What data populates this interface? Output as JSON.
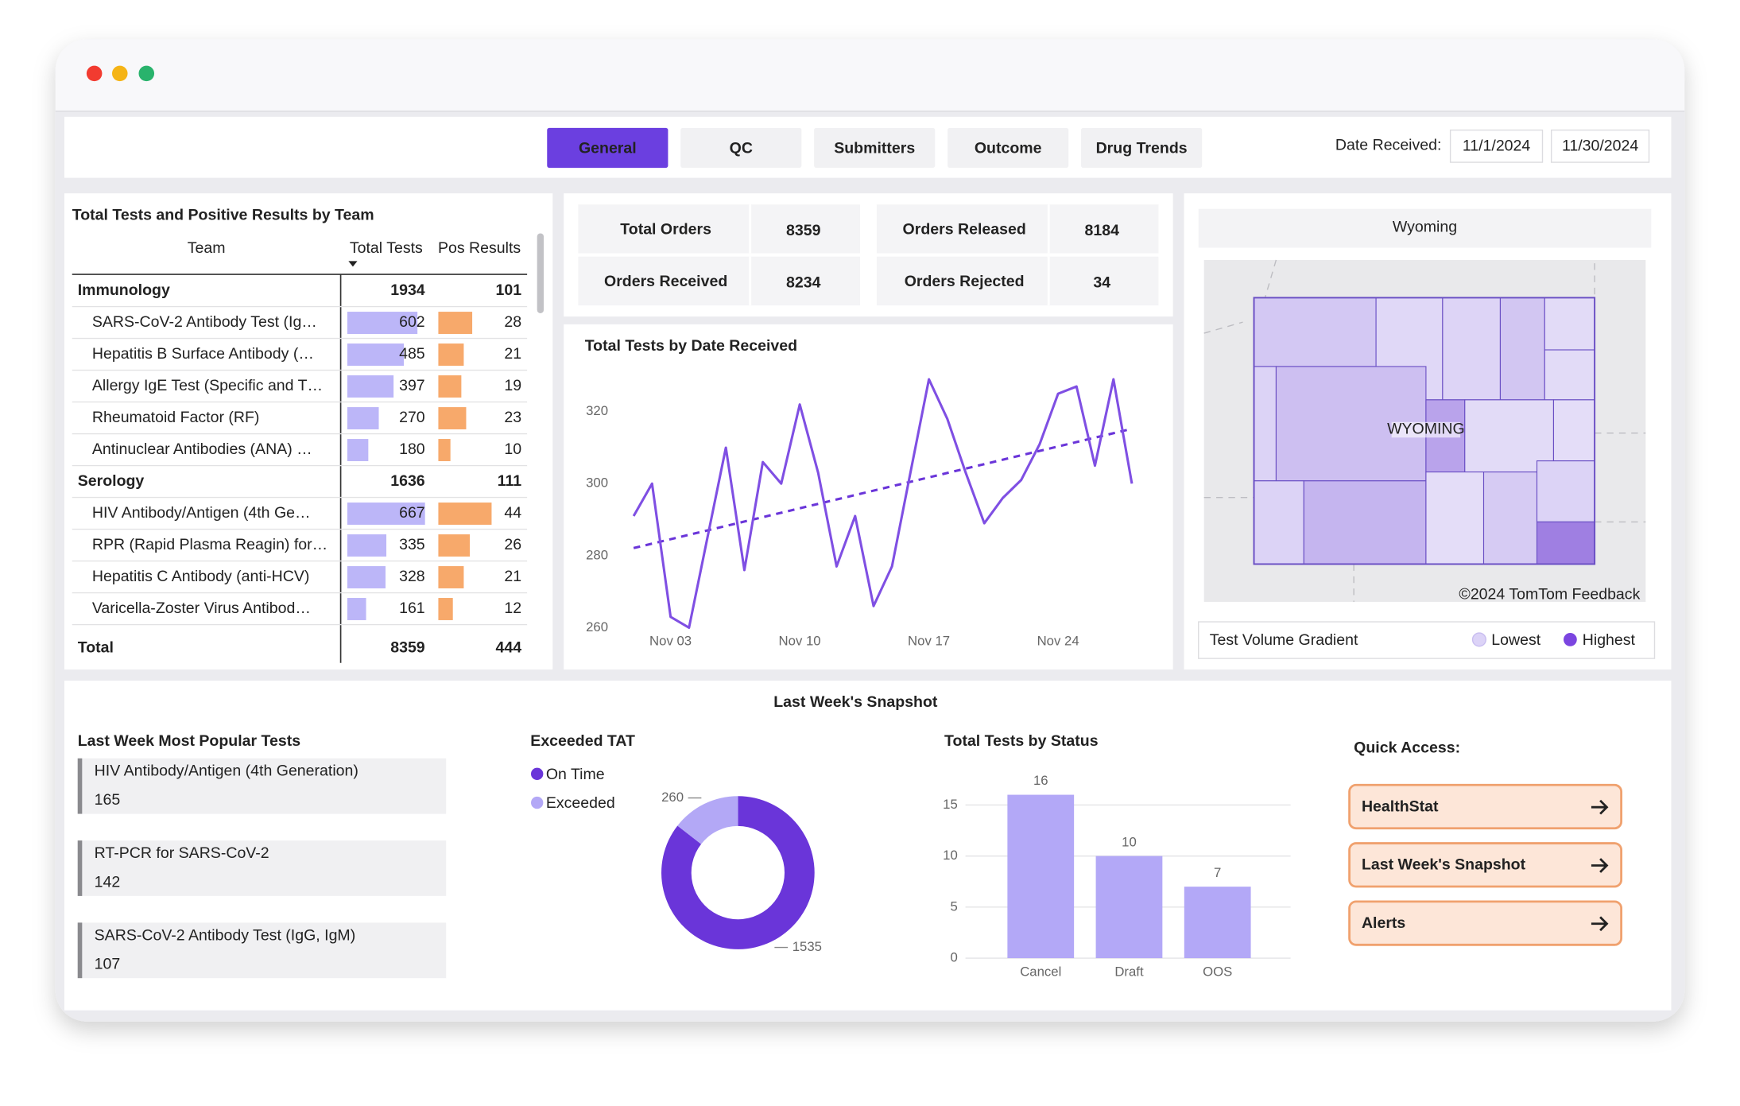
{
  "tabs": [
    "General",
    "QC",
    "Submitters",
    "Outcome",
    "Drug Trends"
  ],
  "date_filter": {
    "label": "Date Received:",
    "start": "11/1/2024",
    "end": "11/30/2024"
  },
  "team_table": {
    "title": "Total Tests and Positive Results by Team",
    "columns": [
      "Team",
      "Total Tests",
      "Pos Results"
    ],
    "groups": [
      {
        "name": "Immunology",
        "total_tests": 1934,
        "pos_results": 101,
        "rows": [
          {
            "name": "SARS-CoV-2 Antibody Test (Ig…",
            "total_tests": 602,
            "pos_results": 28
          },
          {
            "name": "Hepatitis B Surface Antibody (…",
            "total_tests": 485,
            "pos_results": 21
          },
          {
            "name": "Allergy IgE Test (Specific and T…",
            "total_tests": 397,
            "pos_results": 19
          },
          {
            "name": "Rheumatoid Factor (RF)",
            "total_tests": 270,
            "pos_results": 23
          },
          {
            "name": "Antinuclear Antibodies (ANA) …",
            "total_tests": 180,
            "pos_results": 10
          }
        ]
      },
      {
        "name": "Serology",
        "total_tests": 1636,
        "pos_results": 111,
        "rows": [
          {
            "name": "HIV Antibody/Antigen (4th Ge…",
            "total_tests": 667,
            "pos_results": 44
          },
          {
            "name": "RPR (Rapid Plasma Reagin) for…",
            "total_tests": 335,
            "pos_results": 26
          },
          {
            "name": "Hepatitis C Antibody (anti-HCV)",
            "total_tests": 328,
            "pos_results": 21
          },
          {
            "name": "Varicella-Zoster Virus Antibod…",
            "total_tests": 161,
            "pos_results": 12
          }
        ]
      }
    ],
    "total": {
      "label": "Total",
      "total_tests": 8359,
      "pos_results": 444
    }
  },
  "kpis": [
    {
      "label": "Total Orders",
      "value": 8359
    },
    {
      "label": "Orders Released",
      "value": 8184
    },
    {
      "label": "Orders Received",
      "value": 8234
    },
    {
      "label": "Orders Rejected",
      "value": 34
    }
  ],
  "map": {
    "title": "Wyoming",
    "region_label": "WYOMING",
    "attribution": "©2024 TomTom Feedback",
    "legend": {
      "title": "Test Volume Gradient",
      "low": "Lowest",
      "high": "Highest"
    }
  },
  "snapshot": {
    "title": "Last Week's Snapshot",
    "popular_tests": {
      "title": "Last Week Most Popular Tests",
      "items": [
        {
          "name": "HIV Antibody/Antigen (4th Generation)",
          "count": 165
        },
        {
          "name": "RT-PCR for SARS-CoV-2",
          "count": 142
        },
        {
          "name": "SARS-CoV-2 Antibody Test (IgG, IgM)",
          "count": 107
        }
      ]
    },
    "quick_access": {
      "title": "Quick Access:",
      "links": [
        "HealthStat",
        "Last Week's Snapshot",
        "Alerts"
      ]
    }
  },
  "chart_data": [
    {
      "type": "line",
      "title": "Total Tests by Date Received",
      "x": [
        "Nov 01",
        "Nov 02",
        "Nov 03",
        "Nov 04",
        "Nov 05",
        "Nov 06",
        "Nov 07",
        "Nov 08",
        "Nov 09",
        "Nov 10",
        "Nov 11",
        "Nov 12",
        "Nov 13",
        "Nov 14",
        "Nov 15",
        "Nov 16",
        "Nov 17",
        "Nov 18",
        "Nov 19",
        "Nov 20",
        "Nov 21",
        "Nov 22",
        "Nov 23",
        "Nov 24",
        "Nov 25",
        "Nov 26",
        "Nov 27",
        "Nov 28"
      ],
      "xticks": [
        "Nov 03",
        "Nov 10",
        "Nov 17",
        "Nov 24"
      ],
      "values": [
        291,
        300,
        263,
        260,
        285,
        310,
        276,
        306,
        300,
        322,
        303,
        277,
        291,
        266,
        277,
        303,
        329,
        318,
        303,
        289,
        296,
        301,
        311,
        325,
        327,
        305,
        329,
        300
      ],
      "color": "#7f4fe3",
      "trendline": true,
      "trend_color": "#6a35d9",
      "ylim": [
        257,
        331
      ],
      "yticks": [
        260,
        280,
        300,
        320
      ]
    },
    {
      "type": "pie",
      "title": "Exceeded TAT",
      "donut": true,
      "categories": [
        "On Time",
        "Exceeded"
      ],
      "values": [
        1535,
        260
      ],
      "colors": [
        "#6a35d9",
        "#b3a8f6"
      ]
    },
    {
      "type": "bar",
      "title": "Total Tests by Status",
      "categories": [
        "Cancel",
        "Draft",
        "OOS"
      ],
      "values": [
        16,
        10,
        7
      ],
      "color": "#b3a8f7",
      "ylim": [
        0,
        17
      ],
      "yticks": [
        0,
        5,
        10,
        15
      ],
      "grid": true
    }
  ]
}
